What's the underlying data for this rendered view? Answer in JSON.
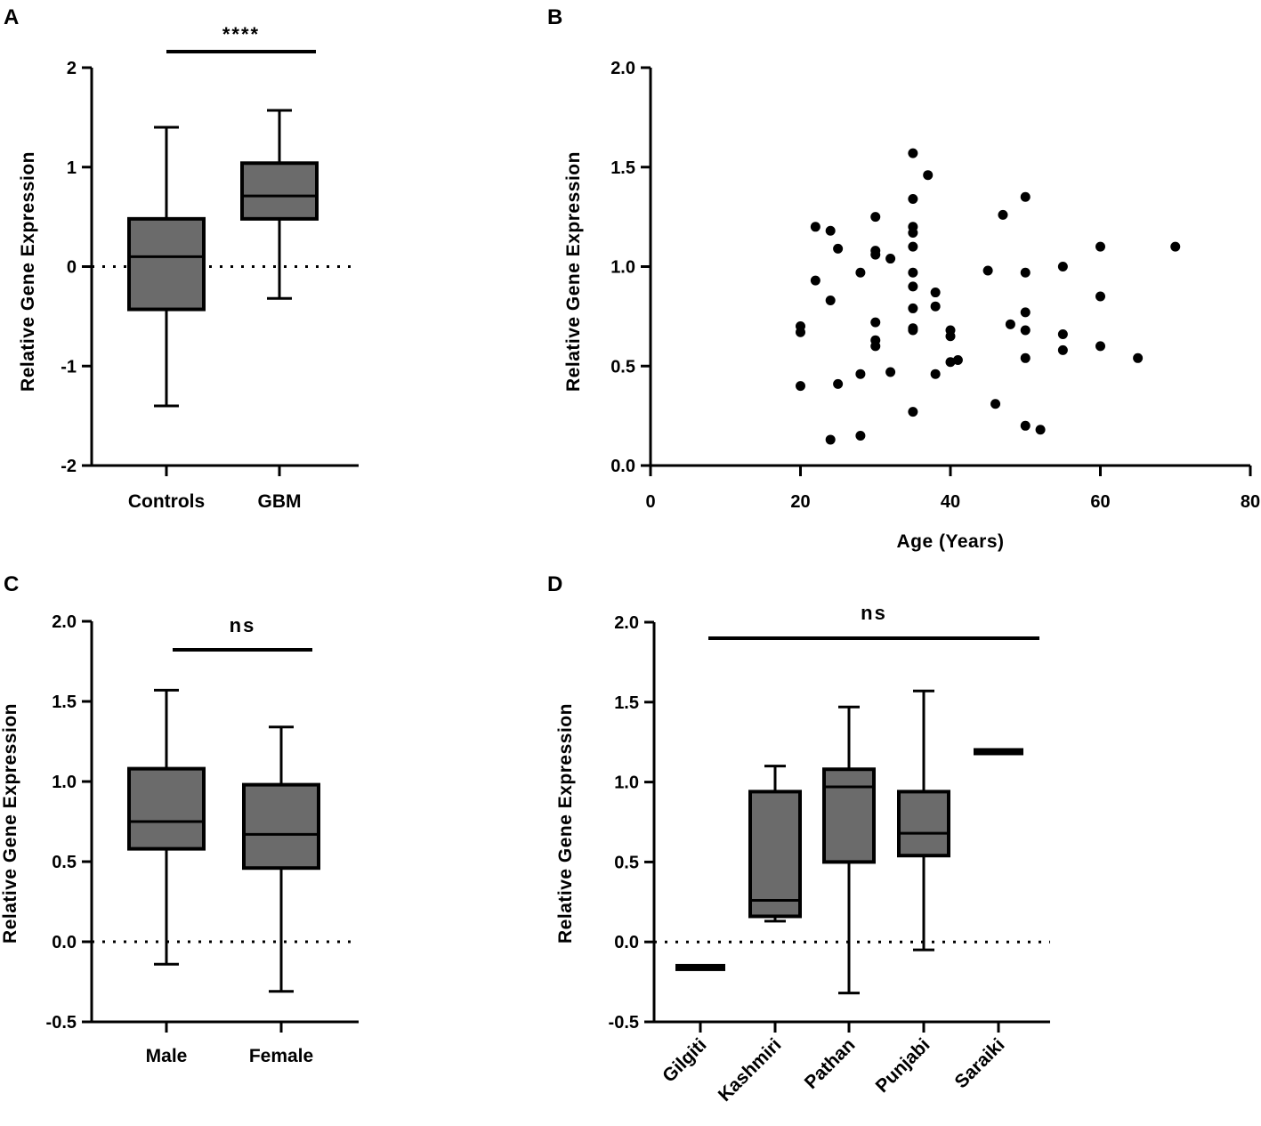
{
  "chart_data": [
    {
      "panel": "A",
      "type": "box",
      "ylabel": "Relative Gene Expression",
      "xlabel": "",
      "ylim": [
        -2,
        2
      ],
      "yticks": [
        "-2",
        "-1",
        "0",
        "1",
        "2"
      ],
      "reference_line": 0,
      "categories": [
        "Controls",
        "GBM"
      ],
      "boxes": [
        {
          "name": "Controls",
          "min": -1.4,
          "q1": -0.43,
          "median": 0.1,
          "q3": 0.48,
          "max": 1.4
        },
        {
          "name": "GBM",
          "min": -0.32,
          "q1": 0.48,
          "median": 0.71,
          "q3": 1.04,
          "max": 1.57
        }
      ],
      "significance": {
        "label": "****",
        "between": [
          "Controls",
          "GBM"
        ]
      }
    },
    {
      "panel": "B",
      "type": "scatter",
      "ylabel": "Relative Gene Expression",
      "xlabel": "Age (Years)",
      "xlim": [
        0,
        80
      ],
      "ylim": [
        0,
        2
      ],
      "xticks": [
        "0",
        "20",
        "40",
        "60",
        "80"
      ],
      "yticks": [
        "0.0",
        "0.5",
        "1.0",
        "1.5",
        "2.0"
      ],
      "points": [
        [
          20,
          0.7
        ],
        [
          20,
          0.67
        ],
        [
          20,
          0.4
        ],
        [
          22,
          1.2
        ],
        [
          22,
          0.93
        ],
        [
          24,
          1.18
        ],
        [
          24,
          0.83
        ],
        [
          24,
          0.13
        ],
        [
          25,
          1.09
        ],
        [
          25,
          0.41
        ],
        [
          28,
          0.97
        ],
        [
          28,
          0.46
        ],
        [
          28,
          0.15
        ],
        [
          30,
          1.25
        ],
        [
          30,
          1.08
        ],
        [
          30,
          1.06
        ],
        [
          30,
          0.72
        ],
        [
          30,
          0.63
        ],
        [
          30,
          0.6
        ],
        [
          32,
          1.04
        ],
        [
          32,
          0.47
        ],
        [
          35,
          1.57
        ],
        [
          35,
          1.34
        ],
        [
          35,
          1.2
        ],
        [
          35,
          1.17
        ],
        [
          35,
          1.1
        ],
        [
          35,
          0.97
        ],
        [
          35,
          0.9
        ],
        [
          35,
          0.79
        ],
        [
          35,
          0.69
        ],
        [
          35,
          0.68
        ],
        [
          35,
          0.27
        ],
        [
          37,
          1.46
        ],
        [
          38,
          0.87
        ],
        [
          38,
          0.8
        ],
        [
          38,
          0.46
        ],
        [
          40,
          0.68
        ],
        [
          40,
          0.65
        ],
        [
          40,
          0.52
        ],
        [
          41,
          0.53
        ],
        [
          45,
          0.98
        ],
        [
          46,
          0.31
        ],
        [
          47,
          1.26
        ],
        [
          48,
          0.71
        ],
        [
          50,
          1.35
        ],
        [
          50,
          0.97
        ],
        [
          50,
          0.77
        ],
        [
          50,
          0.68
        ],
        [
          50,
          0.54
        ],
        [
          50,
          0.2
        ],
        [
          52,
          0.18
        ],
        [
          55,
          1.0
        ],
        [
          55,
          0.66
        ],
        [
          55,
          0.58
        ],
        [
          60,
          1.1
        ],
        [
          60,
          0.85
        ],
        [
          60,
          0.6
        ],
        [
          65,
          0.54
        ],
        [
          70,
          1.1
        ]
      ]
    },
    {
      "panel": "C",
      "type": "box",
      "ylabel": "Relative Gene Expression",
      "xlabel": "",
      "ylim": [
        -0.5,
        2
      ],
      "yticks": [
        "-0.5",
        "0.0",
        "0.5",
        "1.0",
        "1.5",
        "2.0"
      ],
      "reference_line": 0,
      "categories": [
        "Male",
        "Female"
      ],
      "boxes": [
        {
          "name": "Male",
          "min": -0.14,
          "q1": 0.58,
          "median": 0.75,
          "q3": 1.08,
          "max": 1.57
        },
        {
          "name": "Female",
          "min": -0.31,
          "q1": 0.46,
          "median": 0.67,
          "q3": 0.98,
          "max": 1.34
        }
      ],
      "significance": {
        "label": "ns",
        "between": [
          "Male",
          "Female"
        ]
      }
    },
    {
      "panel": "D",
      "type": "box",
      "ylabel": "Relative Gene Expression",
      "xlabel": "",
      "ylim": [
        -0.5,
        2
      ],
      "yticks": [
        "-0.5",
        "0.0",
        "0.5",
        "1.0",
        "1.5",
        "2.0"
      ],
      "reference_line": 0,
      "categories": [
        "Gilgiti",
        "Kashmiri",
        "Pathan",
        "Punjabi",
        "Saraiki"
      ],
      "boxes": [
        {
          "name": "Gilgiti",
          "min": -0.16,
          "q1": -0.16,
          "median": -0.16,
          "q3": -0.16,
          "max": -0.16
        },
        {
          "name": "Kashmiri",
          "min": 0.13,
          "q1": 0.16,
          "median": 0.26,
          "q3": 0.94,
          "max": 1.1
        },
        {
          "name": "Pathan",
          "min": -0.32,
          "q1": 0.5,
          "median": 0.97,
          "q3": 1.08,
          "max": 1.47
        },
        {
          "name": "Punjabi",
          "min": -0.05,
          "q1": 0.54,
          "median": 0.68,
          "q3": 0.94,
          "max": 1.57
        },
        {
          "name": "Saraiki",
          "min": 1.19,
          "q1": 1.19,
          "median": 1.19,
          "q3": 1.19,
          "max": 1.19
        }
      ],
      "significance": {
        "label": "ns",
        "between": [
          "Gilgiti",
          "Saraiki"
        ]
      }
    }
  ]
}
